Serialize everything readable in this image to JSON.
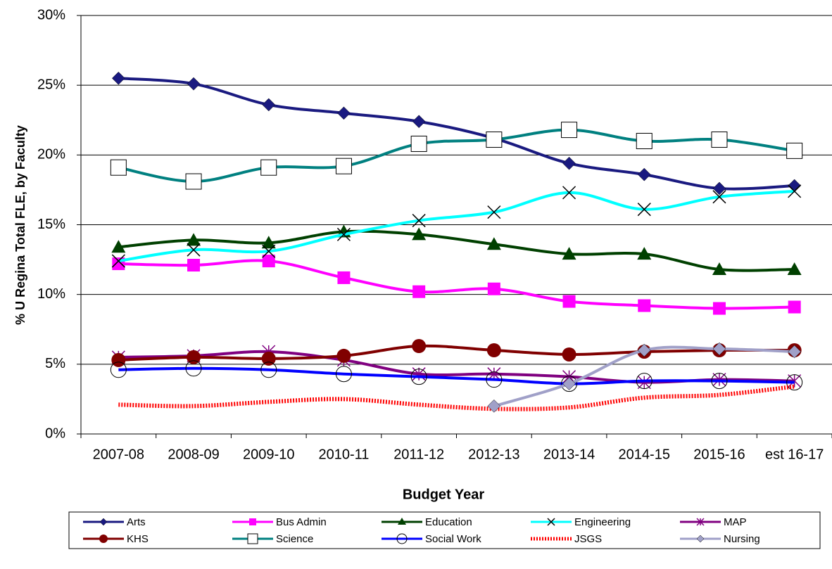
{
  "chart_data": {
    "type": "line",
    "y_label": "% U Regina Total FLE, by Faculty",
    "x_label": "Budget Year",
    "categories": [
      "2007-08",
      "2008-09",
      "2009-10",
      "2010-11",
      "2011-12",
      "2012-13",
      "2013-14",
      "2014-15",
      "2015-16",
      "est 16-17"
    ],
    "ylim": [
      0,
      30
    ],
    "yticks": [
      {
        "value": 0,
        "label": "0%"
      },
      {
        "value": 5,
        "label": "5%"
      },
      {
        "value": 10,
        "label": "10%"
      },
      {
        "value": 15,
        "label": "15%"
      },
      {
        "value": 20,
        "label": "20%"
      },
      {
        "value": 25,
        "label": "25%"
      },
      {
        "value": 30,
        "label": "30%"
      }
    ],
    "grid": true,
    "legend": "bottom",
    "series": [
      {
        "name": "Arts",
        "color": "#1a1a80",
        "marker": "diamond",
        "values": [
          25.5,
          25.1,
          23.6,
          23.0,
          22.4,
          21.2,
          19.4,
          18.6,
          17.6,
          17.8
        ]
      },
      {
        "name": "Bus Admin",
        "color": "#ff00ff",
        "marker": "square",
        "values": [
          12.2,
          12.1,
          12.4,
          11.2,
          10.2,
          10.4,
          9.5,
          9.2,
          9.0,
          9.1
        ]
      },
      {
        "name": "Education",
        "color": "#004000",
        "marker": "triangle",
        "values": [
          13.4,
          13.9,
          13.7,
          14.5,
          14.3,
          13.6,
          12.9,
          12.9,
          11.8,
          11.8
        ]
      },
      {
        "name": "Engineering",
        "color": "#00ffff",
        "marker": "x",
        "values": [
          12.4,
          13.2,
          13.1,
          14.3,
          15.3,
          15.9,
          17.3,
          16.1,
          17.0,
          17.4
        ]
      },
      {
        "name": "MAP",
        "color": "#800080",
        "marker": "star",
        "values": [
          5.5,
          5.6,
          5.9,
          5.3,
          4.3,
          4.3,
          4.1,
          3.7,
          3.9,
          3.8
        ]
      },
      {
        "name": "KHS",
        "color": "#800000",
        "marker": "circle",
        "values": [
          5.3,
          5.5,
          5.4,
          5.6,
          6.3,
          6.0,
          5.7,
          5.9,
          6.0,
          6.0
        ]
      },
      {
        "name": "Science",
        "color": "#008080",
        "marker": "open-square",
        "values": [
          19.1,
          18.1,
          19.1,
          19.2,
          20.8,
          21.1,
          21.8,
          21.0,
          21.1,
          20.3
        ]
      },
      {
        "name": "Social Work",
        "color": "#0000ff",
        "marker": "open-circle",
        "values": [
          4.6,
          4.7,
          4.6,
          4.3,
          4.1,
          3.9,
          3.6,
          3.8,
          3.8,
          3.7
        ]
      },
      {
        "name": "JSGS",
        "color": "#ff0000",
        "marker": "none",
        "dashed": true,
        "values": [
          2.1,
          2.0,
          2.3,
          2.5,
          2.1,
          1.8,
          1.9,
          2.6,
          2.8,
          3.4
        ]
      },
      {
        "name": "Nursing",
        "color": "#a0a0c8",
        "marker": "diamond",
        "values": [
          null,
          null,
          null,
          null,
          null,
          2.0,
          3.6,
          6.0,
          6.1,
          5.9
        ]
      }
    ]
  }
}
